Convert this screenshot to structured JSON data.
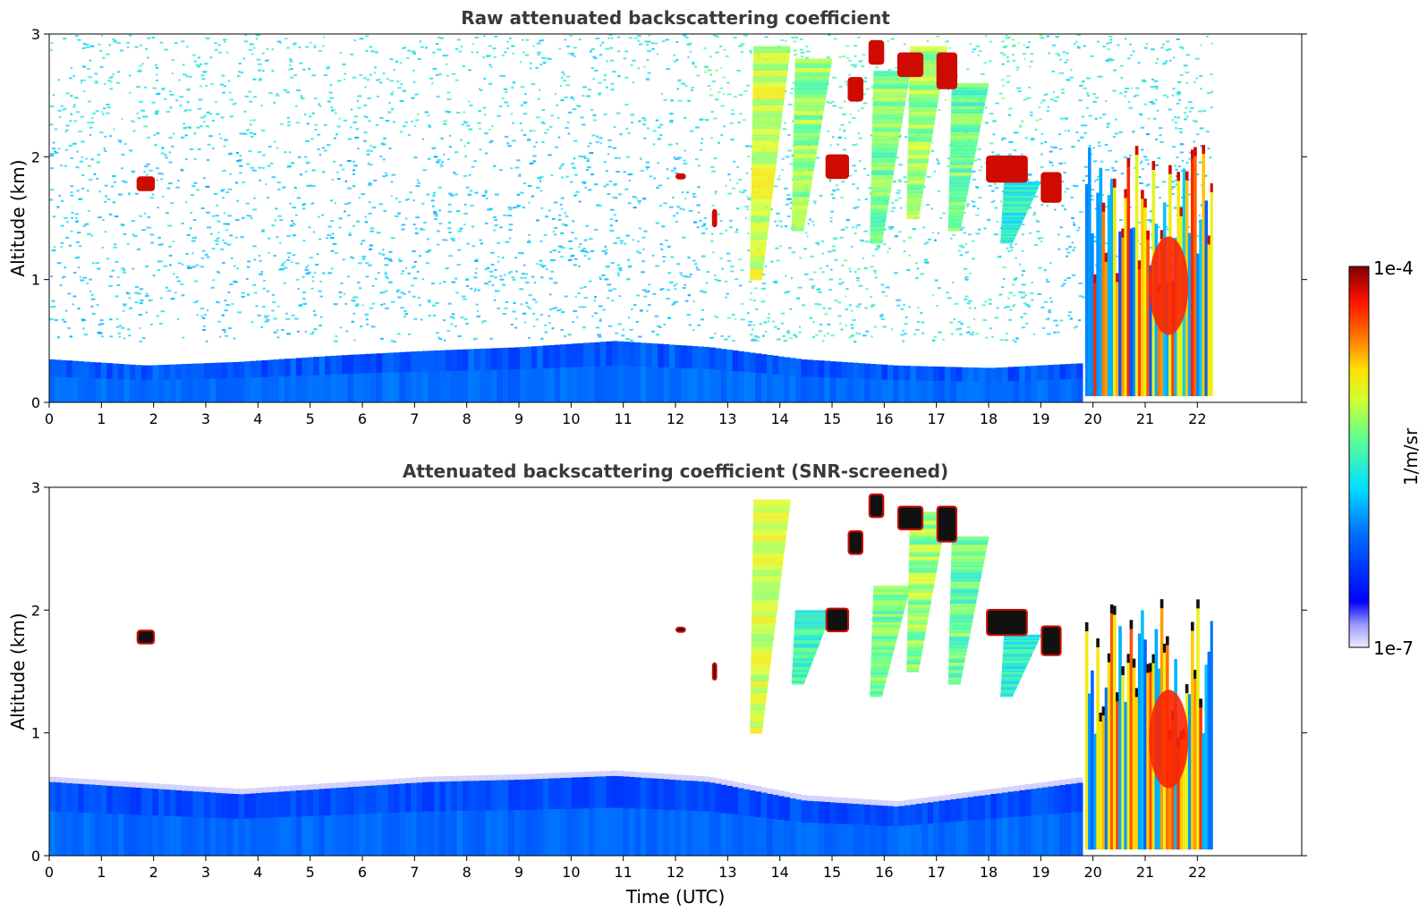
{
  "chart_data": [
    {
      "type": "heatmap",
      "id": "raw",
      "title": "Raw attenuated backscattering coefficient",
      "xlabel": "",
      "ylabel": "Altitude (km)",
      "xlim": [
        0,
        24
      ],
      "ylim": [
        0,
        3
      ],
      "xticks": [
        0,
        1,
        2,
        3,
        4,
        5,
        6,
        7,
        8,
        9,
        10,
        11,
        12,
        13,
        14,
        15,
        16,
        17,
        18,
        19,
        20,
        21,
        22
      ],
      "yticks": [
        0,
        1,
        2
      ],
      "ytick_top": 3,
      "data_end_time": 22.3,
      "screened": false,
      "features": [
        {
          "kind": "boundary_layer",
          "x": [
            0,
            19.8
          ],
          "top": [
            0.35,
            0.3,
            0.33,
            0.38,
            0.42,
            0.45,
            0.5,
            0.45,
            0.35,
            0.3,
            0.28,
            0.32
          ]
        },
        {
          "kind": "noise_cloud",
          "x": [
            0,
            22.3
          ],
          "ymin": 0.5,
          "ymax": 3
        },
        {
          "kind": "ice_plume",
          "x": 13.7,
          "top": 2.9,
          "bottom": 1.0,
          "level": 0.62
        },
        {
          "kind": "ice_plume",
          "x": 14.5,
          "top": 2.8,
          "bottom": 1.4,
          "level": 0.55
        },
        {
          "kind": "ice_plume",
          "x": 16.0,
          "top": 2.7,
          "bottom": 1.3,
          "level": 0.52
        },
        {
          "kind": "ice_plume",
          "x": 16.7,
          "top": 2.9,
          "bottom": 1.5,
          "level": 0.55
        },
        {
          "kind": "ice_plume",
          "x": 17.5,
          "top": 2.6,
          "bottom": 1.4,
          "level": 0.5
        },
        {
          "kind": "ice_plume",
          "x": 18.5,
          "top": 1.8,
          "bottom": 1.3,
          "level": 0.42
        },
        {
          "kind": "cloud",
          "x": 1.85,
          "y": 1.78,
          "w": 0.35,
          "h": 0.12
        },
        {
          "kind": "cloud",
          "x": 12.1,
          "y": 1.84,
          "w": 0.2,
          "h": 0.05
        },
        {
          "kind": "cloud",
          "x": 12.75,
          "y": 1.5,
          "w": 0.1,
          "h": 0.15
        },
        {
          "kind": "cloud",
          "x": 15.1,
          "y": 1.92,
          "w": 0.45,
          "h": 0.2
        },
        {
          "kind": "cloud",
          "x": 15.45,
          "y": 2.55,
          "w": 0.3,
          "h": 0.2
        },
        {
          "kind": "cloud",
          "x": 15.85,
          "y": 2.85,
          "w": 0.3,
          "h": 0.2
        },
        {
          "kind": "cloud",
          "x": 16.5,
          "y": 2.75,
          "w": 0.5,
          "h": 0.2
        },
        {
          "kind": "cloud",
          "x": 17.2,
          "y": 2.7,
          "w": 0.4,
          "h": 0.3
        },
        {
          "kind": "cloud",
          "x": 18.35,
          "y": 1.9,
          "w": 0.8,
          "h": 0.22
        },
        {
          "kind": "cloud",
          "x": 19.2,
          "y": 1.75,
          "w": 0.4,
          "h": 0.25
        },
        {
          "kind": "curtain",
          "x": [
            19.85,
            22.3
          ],
          "top": 2.1
        }
      ]
    },
    {
      "type": "heatmap",
      "id": "screened",
      "title": "Attenuated backscattering coefficient (SNR-screened)",
      "xlabel": "Time (UTC)",
      "ylabel": "Altitude (km)",
      "xlim": [
        0,
        24
      ],
      "ylim": [
        0,
        3
      ],
      "xticks": [
        0,
        1,
        2,
        3,
        4,
        5,
        6,
        7,
        8,
        9,
        10,
        11,
        12,
        13,
        14,
        15,
        16,
        17,
        18,
        19,
        20,
        21,
        22
      ],
      "yticks": [
        0,
        1,
        2
      ],
      "ytick_top": 3,
      "data_end_time": 22.3,
      "screened": true,
      "features": [
        {
          "kind": "boundary_layer",
          "x": [
            0,
            19.8
          ],
          "top": [
            0.6,
            0.55,
            0.5,
            0.55,
            0.6,
            0.62,
            0.65,
            0.6,
            0.45,
            0.4,
            0.5,
            0.6
          ]
        },
        {
          "kind": "ice_plume",
          "x": 13.7,
          "top": 2.9,
          "bottom": 1.0,
          "level": 0.62
        },
        {
          "kind": "ice_plume",
          "x": 14.5,
          "top": 2.0,
          "bottom": 1.4,
          "level": 0.45
        },
        {
          "kind": "ice_plume",
          "x": 16.0,
          "top": 2.2,
          "bottom": 1.3,
          "level": 0.52
        },
        {
          "kind": "ice_plume",
          "x": 16.7,
          "top": 2.8,
          "bottom": 1.5,
          "level": 0.55
        },
        {
          "kind": "ice_plume",
          "x": 17.5,
          "top": 2.6,
          "bottom": 1.4,
          "level": 0.5
        },
        {
          "kind": "ice_plume",
          "x": 18.5,
          "top": 1.8,
          "bottom": 1.3,
          "level": 0.42
        },
        {
          "kind": "cloud",
          "x": 1.85,
          "y": 1.78,
          "w": 0.35,
          "h": 0.12
        },
        {
          "kind": "cloud",
          "x": 12.1,
          "y": 1.84,
          "w": 0.2,
          "h": 0.05
        },
        {
          "kind": "cloud",
          "x": 12.75,
          "y": 1.5,
          "w": 0.1,
          "h": 0.15
        },
        {
          "kind": "cloud",
          "x": 15.1,
          "y": 1.92,
          "w": 0.45,
          "h": 0.2
        },
        {
          "kind": "cloud",
          "x": 15.45,
          "y": 2.55,
          "w": 0.3,
          "h": 0.2
        },
        {
          "kind": "cloud",
          "x": 15.85,
          "y": 2.85,
          "w": 0.3,
          "h": 0.2
        },
        {
          "kind": "cloud",
          "x": 16.5,
          "y": 2.75,
          "w": 0.5,
          "h": 0.2
        },
        {
          "kind": "cloud",
          "x": 17.2,
          "y": 2.7,
          "w": 0.4,
          "h": 0.3
        },
        {
          "kind": "cloud",
          "x": 18.35,
          "y": 1.9,
          "w": 0.8,
          "h": 0.22
        },
        {
          "kind": "cloud",
          "x": 19.2,
          "y": 1.75,
          "w": 0.4,
          "h": 0.25
        },
        {
          "kind": "curtain",
          "x": [
            19.85,
            22.3
          ],
          "top": 2.1
        }
      ]
    }
  ],
  "colorbar": {
    "label": "1/m/sr",
    "max_label": "1e-4",
    "min_label": "1e-7",
    "colormap": "jet",
    "colors": [
      "#00007f",
      "#0000ff",
      "#007fff",
      "#00ffff",
      "#7fff7f",
      "#ffff00",
      "#ff7f00",
      "#ff0000",
      "#7f0000"
    ]
  }
}
